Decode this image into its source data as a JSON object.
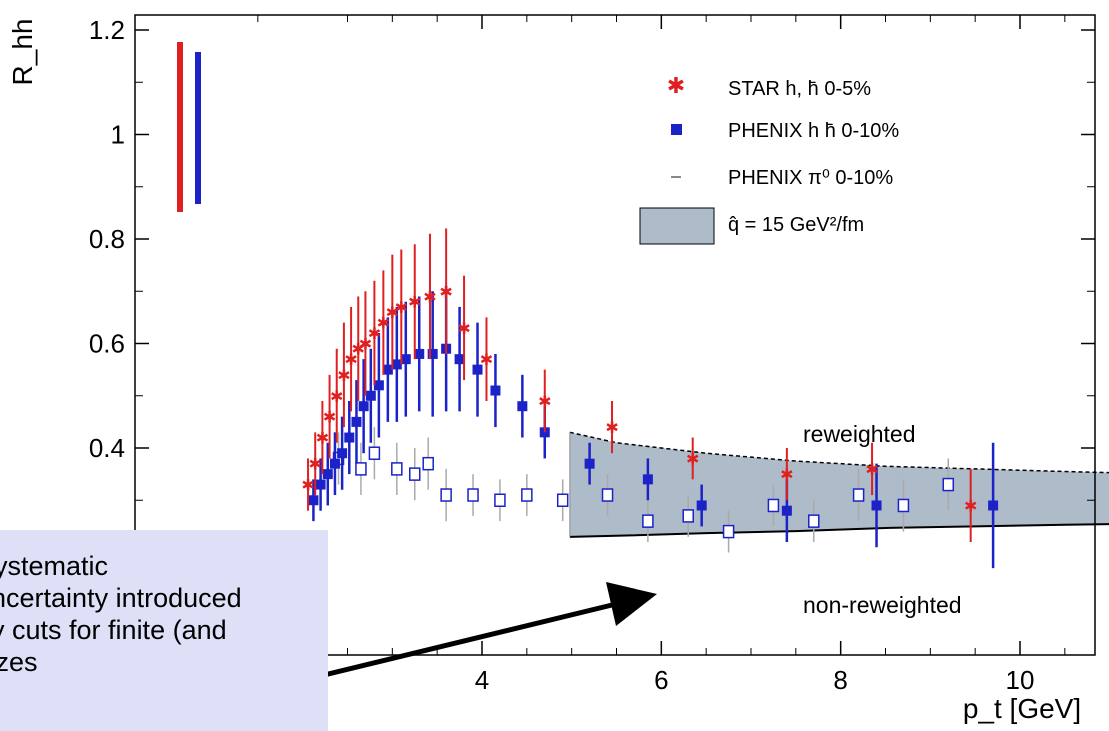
{
  "chart_data": {
    "type": "scatter",
    "xlabel": "p_t [GeV]",
    "ylabel": "R_hh",
    "xlim": [
      0,
      11.2
    ],
    "ylim": [
      0.2,
      1.2
    ],
    "x_ticks": [
      4,
      6,
      8,
      10
    ],
    "y_ticks": [
      0.4,
      0.6,
      0.8,
      1,
      1.2
    ],
    "y_tick_labels": [
      "0.4",
      "0.6",
      "0.8",
      "1",
      "1.2"
    ],
    "x_tick_labels": [
      "4",
      "6",
      "8",
      "10"
    ],
    "legend": {
      "placement": "top-right",
      "entries": [
        {
          "label": "STAR  h, h̄  0-5%",
          "color": "#e02020",
          "marker": "star"
        },
        {
          "label": "PHENIX  h  h̄  0-10%",
          "color": "#1a22c8",
          "marker": "square"
        },
        {
          "label": "PHENIX π⁰  0-10%",
          "color": "#888888",
          "marker": "dash"
        },
        {
          "label": "q̂ = 15 GeV²/fm",
          "color": "#aebbc8",
          "marker": "box"
        }
      ]
    },
    "annotations": {
      "upper_band": "reweighted",
      "lower_band": "non-reweighted",
      "callout_lines": [
        "Systematic",
        "uncertainty introduced",
        "by cuts for finite (and",
        "sizes"
      ]
    },
    "band": {
      "x": [
        4.98,
        5.5,
        6.5,
        7.5,
        8.5,
        9.5,
        10.5,
        11.2
      ],
      "upper": [
        0.43,
        0.41,
        0.39,
        0.375,
        0.365,
        0.36,
        0.355,
        0.352
      ],
      "lower": [
        0.23,
        0.232,
        0.237,
        0.241,
        0.247,
        0.25,
        0.253,
        0.255
      ]
    },
    "series": [
      {
        "name": "STAR  h, h̄  0-5%",
        "x": [
          2.06,
          2.14,
          2.22,
          2.3,
          2.38,
          2.46,
          2.54,
          2.62,
          2.7,
          2.8,
          2.9,
          3.0,
          3.1,
          3.25,
          3.42,
          3.6,
          3.8,
          4.05,
          4.7,
          5.45,
          6.35,
          7.4,
          8.35,
          9.45
        ],
        "y": [
          0.33,
          0.37,
          0.42,
          0.46,
          0.5,
          0.54,
          0.57,
          0.59,
          0.6,
          0.62,
          0.64,
          0.66,
          0.67,
          0.68,
          0.69,
          0.7,
          0.63,
          0.57,
          0.49,
          0.44,
          0.38,
          0.35,
          0.36,
          0.29
        ],
        "err": [
          0.05,
          0.06,
          0.07,
          0.08,
          0.09,
          0.1,
          0.1,
          0.1,
          0.1,
          0.1,
          0.1,
          0.11,
          0.11,
          0.11,
          0.12,
          0.12,
          0.1,
          0.08,
          0.06,
          0.05,
          0.04,
          0.05,
          0.05,
          0.07
        ]
      },
      {
        "name": "PHENIX  h  h̄  0-10%",
        "x": [
          2.12,
          2.2,
          2.28,
          2.36,
          2.44,
          2.52,
          2.6,
          2.68,
          2.76,
          2.85,
          2.95,
          3.05,
          3.15,
          3.3,
          3.45,
          3.6,
          3.75,
          3.95,
          4.15,
          4.45,
          4.7,
          5.2,
          5.85,
          6.45,
          7.4,
          8.4,
          9.7
        ],
        "y": [
          0.3,
          0.33,
          0.35,
          0.37,
          0.39,
          0.42,
          0.45,
          0.48,
          0.5,
          0.52,
          0.55,
          0.56,
          0.57,
          0.58,
          0.58,
          0.59,
          0.57,
          0.55,
          0.51,
          0.48,
          0.43,
          0.37,
          0.34,
          0.29,
          0.28,
          0.29,
          0.29
        ],
        "err": [
          0.04,
          0.05,
          0.06,
          0.06,
          0.07,
          0.07,
          0.08,
          0.09,
          0.09,
          0.1,
          0.1,
          0.11,
          0.11,
          0.11,
          0.12,
          0.12,
          0.1,
          0.09,
          0.07,
          0.06,
          0.05,
          0.04,
          0.04,
          0.04,
          0.06,
          0.08,
          0.12
        ]
      },
      {
        "name": "PHENIX π⁰  0-10%",
        "x": [
          2.4,
          2.65,
          2.8,
          3.05,
          3.25,
          3.4,
          3.6,
          3.9,
          4.2,
          4.5,
          4.9,
          5.4,
          5.85,
          6.3,
          6.75,
          7.25,
          7.7,
          8.2,
          8.7,
          9.2
        ],
        "y": [
          0.38,
          0.36,
          0.39,
          0.36,
          0.35,
          0.37,
          0.31,
          0.31,
          0.3,
          0.31,
          0.3,
          0.31,
          0.26,
          0.27,
          0.24,
          0.29,
          0.26,
          0.31,
          0.29,
          0.33
        ],
        "err": [
          0.05,
          0.05,
          0.05,
          0.05,
          0.05,
          0.05,
          0.05,
          0.04,
          0.04,
          0.04,
          0.04,
          0.04,
          0.04,
          0.04,
          0.04,
          0.04,
          0.04,
          0.05,
          0.05,
          0.05
        ]
      }
    ]
  },
  "colors": {
    "star": "#e02020",
    "phenix_hh": "#1a22c8",
    "phenix_pi0": "#999999",
    "band": "#aebbc8",
    "callout_bg": "#dde0f7"
  }
}
